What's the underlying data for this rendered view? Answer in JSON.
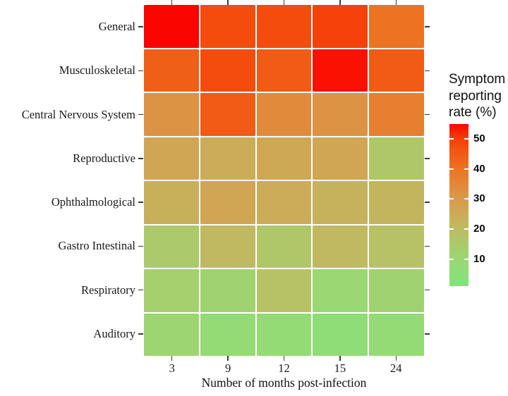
{
  "chart_data": {
    "type": "heatmap",
    "title": "",
    "xlabel": "Number of months post-infection",
    "ylabel": "",
    "x_categories": [
      "3",
      "9",
      "12",
      "15",
      "24"
    ],
    "y_categories": [
      "General",
      "Musculoskeletal",
      "Central Nervous System",
      "Reproductive",
      "Ophthalmological",
      "Gastro Intestinal",
      "Respiratory",
      "Auditory"
    ],
    "values": [
      [
        55,
        48,
        48,
        50,
        40
      ],
      [
        44,
        48,
        45,
        54,
        45
      ],
      [
        32,
        45,
        34,
        32,
        37
      ],
      [
        27,
        25,
        26,
        27,
        16
      ],
      [
        24,
        27,
        25,
        23,
        22
      ],
      [
        15,
        21,
        16,
        21,
        18
      ],
      [
        13,
        12,
        18,
        10,
        12
      ],
      [
        11,
        8,
        8,
        6,
        8
      ]
    ],
    "legend": {
      "title": "Symptom reporting rate (%)",
      "ticks": [
        50,
        40,
        30,
        20,
        10
      ],
      "domain": [
        1,
        55
      ],
      "color_stops": [
        {
          "value": 1,
          "color": "#81E37B"
        },
        {
          "value": 10,
          "color": "#99D873"
        },
        {
          "value": 20,
          "color": "#BEBC63"
        },
        {
          "value": 30,
          "color": "#D89B4C"
        },
        {
          "value": 40,
          "color": "#EC7322"
        },
        {
          "value": 50,
          "color": "#F54208"
        },
        {
          "value": 55,
          "color": "#FB0500"
        }
      ]
    },
    "axis_ticks_on": [
      "top",
      "bottom",
      "left",
      "right"
    ],
    "grid": false
  }
}
